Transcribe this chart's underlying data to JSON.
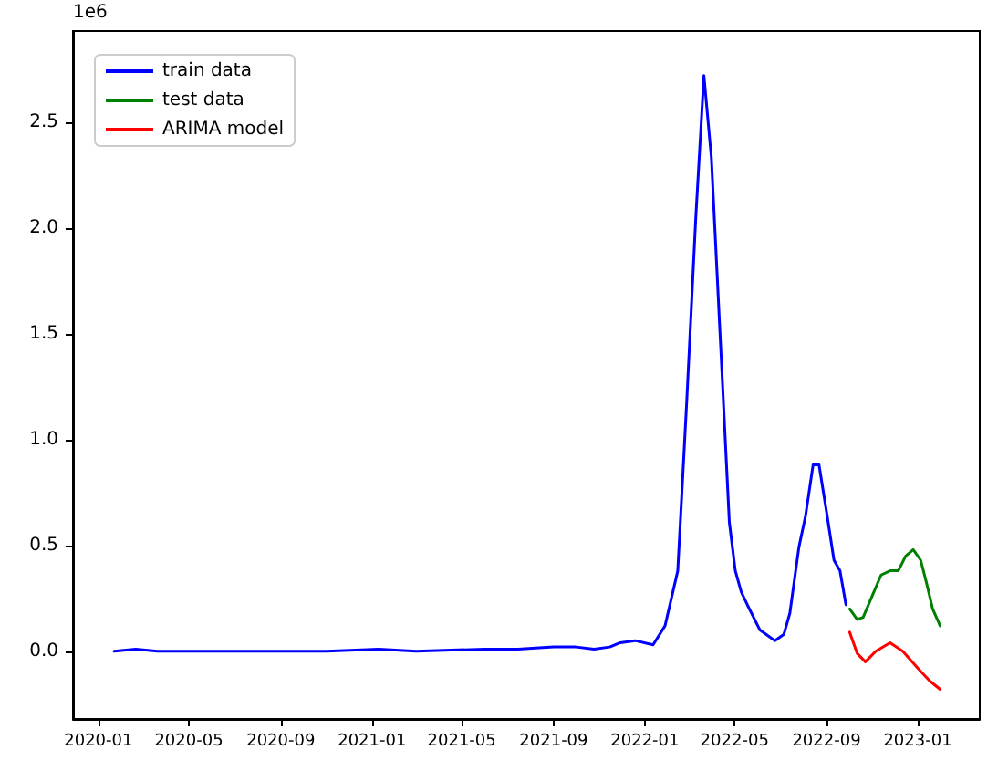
{
  "chart_data": {
    "type": "line",
    "xlim": [
      "2019-11-28",
      "2023-03-25"
    ],
    "ylim": [
      -0.32,
      2.93
    ],
    "xticks": [
      "2020-01",
      "2020-05",
      "2020-09",
      "2021-01",
      "2021-05",
      "2021-09",
      "2022-01",
      "2022-05",
      "2022-09",
      "2023-01"
    ],
    "yticks": [
      {
        "value": 0,
        "label": "0.0"
      },
      {
        "value": 0.5,
        "label": "0.5"
      },
      {
        "value": 1,
        "label": "1.0"
      },
      {
        "value": 1.5,
        "label": "1.5"
      },
      {
        "value": 2,
        "label": "2.0"
      },
      {
        "value": 2.5,
        "label": "2.5"
      }
    ],
    "annotations": [
      "1e6"
    ],
    "legend": "top left",
    "grid": false,
    "marker": "none",
    "line_style": "solid",
    "series": [
      {
        "name": "train data",
        "color": "#0000ff",
        "x": [
          "2020-01-22",
          "2020-02-20",
          "2020-03-20",
          "2020-06-01",
          "2020-09-01",
          "2020-11-01",
          "2021-01-10",
          "2021-03-01",
          "2021-06-01",
          "2021-07-15",
          "2021-09-01",
          "2021-10-01",
          "2021-10-25",
          "2021-11-15",
          "2021-11-29",
          "2021-12-19",
          "2022-01-12",
          "2022-01-28",
          "2022-02-14",
          "2022-02-26",
          "2022-03-10",
          "2022-03-21",
          "2022-03-31",
          "2022-04-12",
          "2022-04-24",
          "2022-05-02",
          "2022-05-10",
          "2022-05-18",
          "2022-06-04",
          "2022-06-24",
          "2022-07-06",
          "2022-07-14",
          "2022-07-26",
          "2022-08-04",
          "2022-08-14",
          "2022-08-22",
          "2022-09-01",
          "2022-09-11",
          "2022-09-19",
          "2022-09-27"
        ],
        "values": [
          0,
          0.01,
          0,
          0,
          0,
          0,
          0.01,
          0,
          0.01,
          0.01,
          0.02,
          0.02,
          0.01,
          0.02,
          0.04,
          0.05,
          0.03,
          0.12,
          0.38,
          1.18,
          2.04,
          2.72,
          2.33,
          1.47,
          0.61,
          0.38,
          0.28,
          0.22,
          0.1,
          0.05,
          0.08,
          0.18,
          0.49,
          0.64,
          0.88,
          0.88,
          0.66,
          0.43,
          0.38,
          0.22
        ]
      },
      {
        "name": "test data",
        "color": "#008000",
        "x": [
          "2022-10-02",
          "2022-10-12",
          "2022-10-20",
          "2022-11-01",
          "2022-11-13",
          "2022-11-25",
          "2022-12-06",
          "2022-12-16",
          "2022-12-26",
          "2023-01-05",
          "2023-01-13",
          "2023-01-21",
          "2023-01-31"
        ],
        "values": [
          0.2,
          0.15,
          0.16,
          0.26,
          0.36,
          0.38,
          0.38,
          0.45,
          0.48,
          0.43,
          0.32,
          0.2,
          0.12
        ]
      },
      {
        "name": "ARIMA model",
        "color": "#ff0000",
        "x": [
          "2022-10-02",
          "2022-10-12",
          "2022-10-23",
          "2022-11-06",
          "2022-11-25",
          "2022-12-12",
          "2023-01-01",
          "2023-01-17",
          "2023-01-31"
        ],
        "values": [
          0.09,
          -0.01,
          -0.05,
          0,
          0.04,
          0,
          -0.08,
          -0.14,
          -0.18
        ]
      }
    ]
  }
}
